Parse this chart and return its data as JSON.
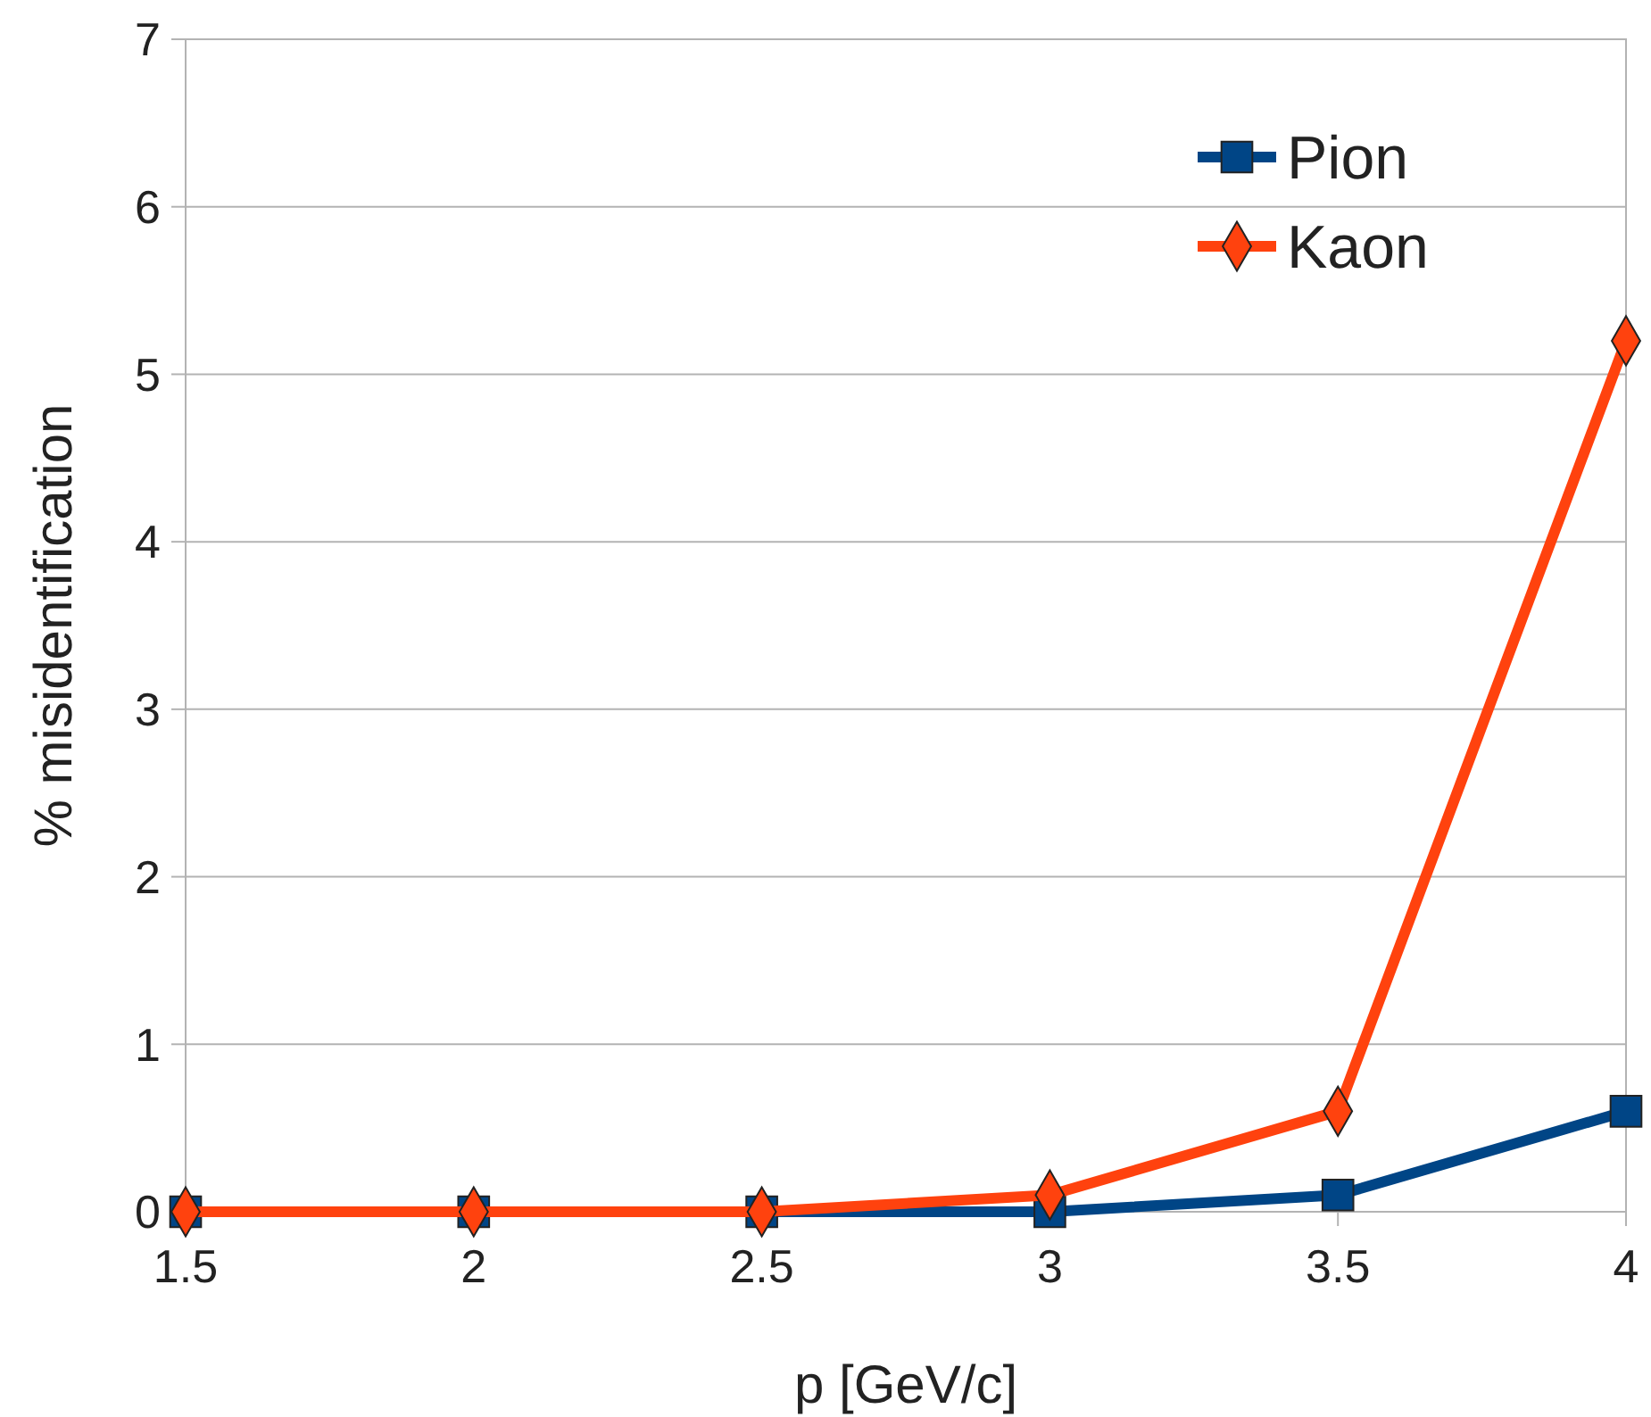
{
  "chart_data": {
    "type": "line",
    "xlabel": "p [GeV/c]",
    "ylabel": "% misidentification",
    "x": [
      1.5,
      2,
      2.5,
      3,
      3.5,
      4
    ],
    "series": [
      {
        "name": "Pion",
        "color": "#004586",
        "marker": "square",
        "values": [
          0,
          0,
          0,
          0,
          0.1,
          0.6
        ]
      },
      {
        "name": "Kaon",
        "color": "#ff420e",
        "marker": "diamond",
        "values": [
          0,
          0,
          0,
          0.1,
          0.6,
          5.2
        ]
      }
    ],
    "xlim": [
      1.5,
      4
    ],
    "xticks": [
      1.5,
      2,
      2.5,
      3,
      3.5,
      4
    ],
    "ylim": [
      0,
      7
    ],
    "yticks": [
      0,
      1,
      2,
      3,
      4,
      5,
      6,
      7
    ],
    "grid": "y",
    "legend": "top right",
    "line_style": "solid"
  }
}
